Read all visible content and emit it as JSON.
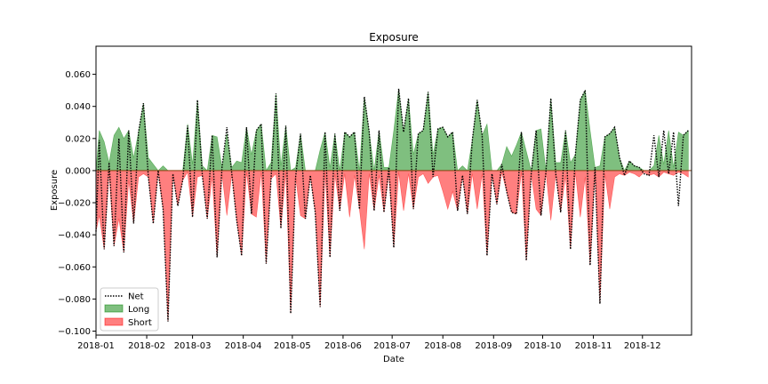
{
  "chart_data": {
    "type": "area",
    "title": "Exposure",
    "xlabel": "Date",
    "ylabel": "Exposure",
    "xlim": [
      "2018-01-01",
      "2018-12-31"
    ],
    "ylim": [
      -0.1025,
      0.0775
    ],
    "yticks": [
      -0.1,
      -0.08,
      -0.06,
      -0.04,
      -0.02,
      0.0,
      0.02,
      0.04,
      0.06
    ],
    "ytick_labels": [
      "−0.100",
      "−0.080",
      "−0.060",
      "−0.040",
      "−0.020",
      "0.000",
      "0.020",
      "0.040",
      "0.060"
    ],
    "xticks": [
      "2018-01-01",
      "2018-02-01",
      "2018-03-01",
      "2018-04-01",
      "2018-05-01",
      "2018-06-01",
      "2018-07-01",
      "2018-08-01",
      "2018-09-01",
      "2018-10-01",
      "2018-11-01",
      "2018-12-01"
    ],
    "xtick_labels": [
      "2018-01",
      "2018-02",
      "2018-03",
      "2018-04",
      "2018-05",
      "2018-06",
      "2018-07",
      "2018-08",
      "2018-09",
      "2018-10",
      "2018-11",
      "2018-12"
    ],
    "grid": false,
    "legend": "lower-left",
    "colors": {
      "long": "#008000",
      "short": "#ff0000",
      "net": "#000000",
      "zero_line": "#8b4513"
    },
    "series": [
      {
        "name": "Long",
        "x": [
          "2018-01-01",
          "2018-01-03",
          "2018-01-06",
          "2018-01-09",
          "2018-01-12",
          "2018-01-15",
          "2018-01-18",
          "2018-01-21",
          "2018-01-24",
          "2018-01-27",
          "2018-01-30",
          "2018-02-02",
          "2018-02-05",
          "2018-02-08",
          "2018-02-11",
          "2018-02-14",
          "2018-02-17",
          "2018-02-20",
          "2018-02-23",
          "2018-02-26",
          "2018-03-01",
          "2018-03-04",
          "2018-03-07",
          "2018-03-10",
          "2018-03-13",
          "2018-03-16",
          "2018-03-19",
          "2018-03-22",
          "2018-03-25",
          "2018-03-28",
          "2018-03-31",
          "2018-04-03",
          "2018-04-06",
          "2018-04-09",
          "2018-04-12",
          "2018-04-15",
          "2018-04-18",
          "2018-04-21",
          "2018-04-24",
          "2018-04-27",
          "2018-04-30",
          "2018-05-03",
          "2018-05-06",
          "2018-05-09",
          "2018-05-12",
          "2018-05-15",
          "2018-05-18",
          "2018-05-21",
          "2018-05-24",
          "2018-05-27",
          "2018-05-30",
          "2018-06-02",
          "2018-06-05",
          "2018-06-08",
          "2018-06-11",
          "2018-06-14",
          "2018-06-17",
          "2018-06-20",
          "2018-06-23",
          "2018-06-26",
          "2018-06-29",
          "2018-07-02",
          "2018-07-05",
          "2018-07-08",
          "2018-07-11",
          "2018-07-14",
          "2018-07-17",
          "2018-07-20",
          "2018-07-23",
          "2018-07-26",
          "2018-07-29",
          "2018-08-01",
          "2018-08-04",
          "2018-08-07",
          "2018-08-10",
          "2018-08-13",
          "2018-08-16",
          "2018-08-19",
          "2018-08-22",
          "2018-08-25",
          "2018-08-28",
          "2018-08-31",
          "2018-09-03",
          "2018-09-06",
          "2018-09-09",
          "2018-09-12",
          "2018-09-15",
          "2018-09-18",
          "2018-09-21",
          "2018-09-24",
          "2018-09-27",
          "2018-09-30",
          "2018-10-03",
          "2018-10-06",
          "2018-10-09",
          "2018-10-12",
          "2018-10-15",
          "2018-10-18",
          "2018-10-21",
          "2018-10-24",
          "2018-10-27",
          "2018-10-30",
          "2018-11-02",
          "2018-11-05",
          "2018-11-08",
          "2018-11-11",
          "2018-11-14",
          "2018-11-17",
          "2018-11-20",
          "2018-11-23",
          "2018-11-26",
          "2018-11-29",
          "2018-12-02",
          "2018-12-05",
          "2018-12-08",
          "2018-12-11",
          "2018-12-14",
          "2018-12-17",
          "2018-12-20",
          "2018-12-23",
          "2018-12-26",
          "2018-12-29"
        ],
        "values": [
          0,
          0.025,
          0.018,
          0.005,
          0.022,
          0.027,
          0.02,
          0.025,
          0.008,
          0.024,
          0.042,
          0.008,
          0.004,
          0,
          0.003,
          0,
          0,
          0,
          0,
          0.029,
          0.004,
          0.044,
          0.003,
          0,
          0.022,
          0.021,
          0.002,
          0.023,
          0.002,
          0.006,
          0.005,
          0.027,
          0.01,
          0.025,
          0.029,
          0,
          0.005,
          0.048,
          0.003,
          0.028,
          0,
          0.002,
          0.023,
          0,
          0,
          0,
          0.013,
          0.024,
          0.002,
          0.023,
          0,
          0.024,
          0.021,
          0.024,
          0,
          0.046,
          0.024,
          0,
          0.025,
          0.002,
          0.002,
          0.025,
          0.051,
          0.024,
          0.045,
          0.01,
          0.023,
          0.025,
          0.049,
          0.01,
          0.026,
          0.027,
          0.021,
          0.024,
          0,
          0.003,
          0,
          0.019,
          0.044,
          0.022,
          0.029,
          0,
          0,
          0.004,
          0.015,
          0.009,
          0.016,
          0.024,
          0.012,
          0,
          0.025,
          0.026,
          0,
          0.045,
          0.005,
          0.005,
          0.025,
          0.005,
          0.01,
          0.044,
          0.05,
          0.025,
          0.002,
          0.003,
          0.021,
          0.023,
          0.027,
          0.008,
          0,
          0.006,
          0.003,
          0.002,
          0,
          0,
          0.003,
          0.022,
          0.004,
          0.025,
          0.002,
          0.024,
          0.022,
          0.025
        ]
      },
      {
        "name": "Short",
        "x": [
          "2018-01-01",
          "2018-01-03",
          "2018-01-06",
          "2018-01-09",
          "2018-01-12",
          "2018-01-15",
          "2018-01-18",
          "2018-01-21",
          "2018-01-24",
          "2018-01-27",
          "2018-01-30",
          "2018-02-02",
          "2018-02-05",
          "2018-02-08",
          "2018-02-11",
          "2018-02-14",
          "2018-02-17",
          "2018-02-20",
          "2018-02-23",
          "2018-02-26",
          "2018-03-01",
          "2018-03-04",
          "2018-03-07",
          "2018-03-10",
          "2018-03-13",
          "2018-03-16",
          "2018-03-19",
          "2018-03-22",
          "2018-03-25",
          "2018-03-28",
          "2018-03-31",
          "2018-04-03",
          "2018-04-06",
          "2018-04-09",
          "2018-04-12",
          "2018-04-15",
          "2018-04-18",
          "2018-04-21",
          "2018-04-24",
          "2018-04-27",
          "2018-04-30",
          "2018-05-03",
          "2018-05-06",
          "2018-05-09",
          "2018-05-12",
          "2018-05-15",
          "2018-05-18",
          "2018-05-21",
          "2018-05-24",
          "2018-05-27",
          "2018-05-30",
          "2018-06-02",
          "2018-06-05",
          "2018-06-08",
          "2018-06-11",
          "2018-06-14",
          "2018-06-17",
          "2018-06-20",
          "2018-06-23",
          "2018-06-26",
          "2018-06-29",
          "2018-07-02",
          "2018-07-05",
          "2018-07-08",
          "2018-07-11",
          "2018-07-14",
          "2018-07-17",
          "2018-07-20",
          "2018-07-23",
          "2018-07-26",
          "2018-07-29",
          "2018-08-01",
          "2018-08-04",
          "2018-08-07",
          "2018-08-10",
          "2018-08-13",
          "2018-08-16",
          "2018-08-19",
          "2018-08-22",
          "2018-08-25",
          "2018-08-28",
          "2018-08-31",
          "2018-09-03",
          "2018-09-06",
          "2018-09-09",
          "2018-09-12",
          "2018-09-15",
          "2018-09-18",
          "2018-09-21",
          "2018-09-24",
          "2018-09-27",
          "2018-09-30",
          "2018-10-03",
          "2018-10-06",
          "2018-10-09",
          "2018-10-12",
          "2018-10-15",
          "2018-10-18",
          "2018-10-21",
          "2018-10-24",
          "2018-10-27",
          "2018-10-30",
          "2018-11-02",
          "2018-11-05",
          "2018-11-08",
          "2018-11-11",
          "2018-11-14",
          "2018-11-17",
          "2018-11-20",
          "2018-11-23",
          "2018-11-26",
          "2018-11-29",
          "2018-12-02",
          "2018-12-05",
          "2018-12-08",
          "2018-12-11",
          "2018-12-14",
          "2018-12-17",
          "2018-12-20",
          "2018-12-23",
          "2018-12-26",
          "2018-12-29"
        ],
        "values": [
          -0.038,
          -0.028,
          -0.049,
          -0.001,
          -0.047,
          -0.03,
          -0.051,
          -0.006,
          -0.033,
          -0.004,
          -0.002,
          -0.004,
          -0.033,
          -0.001,
          -0.024,
          -0.094,
          -0.002,
          -0.022,
          -0.006,
          -0.001,
          -0.029,
          -0.004,
          -0.003,
          -0.03,
          -0.004,
          -0.054,
          -0.002,
          -0.028,
          -0.002,
          -0.031,
          -0.053,
          -0.001,
          -0.027,
          -0.029,
          -0.001,
          -0.058,
          -0.005,
          -0.002,
          -0.036,
          -0.001,
          -0.089,
          -0.004,
          -0.028,
          -0.03,
          -0.003,
          -0.026,
          -0.085,
          -0.001,
          -0.054,
          -0.002,
          -0.025,
          -0.002,
          -0.029,
          -0.003,
          -0.024,
          -0.049,
          -0.002,
          -0.025,
          -0.003,
          -0.026,
          -0.002,
          -0.048,
          -0.001,
          -0.025,
          -0.002,
          -0.024,
          -0.004,
          -0.002,
          -0.008,
          -0.004,
          -0.003,
          -0.013,
          -0.024,
          -0.013,
          -0.025,
          -0.003,
          -0.027,
          -0.002,
          -0.024,
          -0.002,
          -0.053,
          -0.002,
          -0.021,
          -0.001,
          -0.013,
          -0.026,
          -0.027,
          -0.001,
          -0.056,
          -0.002,
          -0.024,
          -0.028,
          -0.001,
          -0.031,
          -0.002,
          -0.026,
          -0.003,
          -0.049,
          -0.001,
          -0.029,
          -0.004,
          -0.059,
          -0.001,
          -0.083,
          -0.002,
          -0.024,
          -0.004,
          -0.002,
          -0.003,
          -0.001,
          -0.002,
          -0.004,
          -0.001,
          -0.003,
          -0.002,
          -0.004,
          -0.001,
          -0.002,
          -0.003,
          -0.001,
          -0.002,
          -0.004
        ]
      },
      {
        "name": "Net",
        "x": [
          "2018-01-01",
          "2018-01-03",
          "2018-01-06",
          "2018-01-09",
          "2018-01-12",
          "2018-01-15",
          "2018-01-18",
          "2018-01-21",
          "2018-01-24",
          "2018-01-27",
          "2018-01-30",
          "2018-02-02",
          "2018-02-05",
          "2018-02-08",
          "2018-02-11",
          "2018-02-14",
          "2018-02-17",
          "2018-02-20",
          "2018-02-23",
          "2018-02-26",
          "2018-03-01",
          "2018-03-04",
          "2018-03-07",
          "2018-03-10",
          "2018-03-13",
          "2018-03-16",
          "2018-03-19",
          "2018-03-22",
          "2018-03-25",
          "2018-03-28",
          "2018-03-31",
          "2018-04-03",
          "2018-04-06",
          "2018-04-09",
          "2018-04-12",
          "2018-04-15",
          "2018-04-18",
          "2018-04-21",
          "2018-04-24",
          "2018-04-27",
          "2018-04-30",
          "2018-05-03",
          "2018-05-06",
          "2018-05-09",
          "2018-05-12",
          "2018-05-15",
          "2018-05-18",
          "2018-05-21",
          "2018-05-24",
          "2018-05-27",
          "2018-05-30",
          "2018-06-02",
          "2018-06-05",
          "2018-06-08",
          "2018-06-11",
          "2018-06-14",
          "2018-06-17",
          "2018-06-20",
          "2018-06-23",
          "2018-06-26",
          "2018-06-29",
          "2018-07-02",
          "2018-07-05",
          "2018-07-08",
          "2018-07-11",
          "2018-07-14",
          "2018-07-17",
          "2018-07-20",
          "2018-07-23",
          "2018-07-26",
          "2018-07-29",
          "2018-08-01",
          "2018-08-04",
          "2018-08-07",
          "2018-08-10",
          "2018-08-13",
          "2018-08-16",
          "2018-08-19",
          "2018-08-22",
          "2018-08-25",
          "2018-08-28",
          "2018-08-31",
          "2018-09-03",
          "2018-09-06",
          "2018-09-09",
          "2018-09-12",
          "2018-09-15",
          "2018-09-18",
          "2018-09-21",
          "2018-09-24",
          "2018-09-27",
          "2018-09-30",
          "2018-10-03",
          "2018-10-06",
          "2018-10-09",
          "2018-10-12",
          "2018-10-15",
          "2018-10-18",
          "2018-10-21",
          "2018-10-24",
          "2018-10-27",
          "2018-10-30",
          "2018-11-02",
          "2018-11-05",
          "2018-11-08",
          "2018-11-11",
          "2018-11-14",
          "2018-11-17",
          "2018-11-20",
          "2018-11-23",
          "2018-11-26",
          "2018-11-29",
          "2018-12-02",
          "2018-12-05",
          "2018-12-08",
          "2018-12-11",
          "2018-12-14",
          "2018-12-17",
          "2018-12-20",
          "2018-12-23",
          "2018-12-26",
          "2018-12-29"
        ],
        "values": [
          -0.038,
          0.019,
          -0.049,
          0.005,
          -0.047,
          0.02,
          -0.051,
          0.025,
          -0.033,
          0.024,
          0.042,
          -0.004,
          -0.033,
          0,
          -0.024,
          -0.094,
          -0.002,
          -0.022,
          -0.006,
          0.028,
          -0.029,
          0.044,
          -0.003,
          -0.03,
          0.022,
          -0.054,
          0.002,
          0.027,
          -0.002,
          -0.031,
          -0.053,
          0.027,
          -0.027,
          0.025,
          0.029,
          -0.058,
          -0.005,
          0.048,
          -0.036,
          0.028,
          -0.089,
          -0.004,
          0.023,
          -0.03,
          -0.003,
          -0.026,
          -0.085,
          0.024,
          -0.054,
          0.023,
          -0.025,
          0.024,
          0.021,
          0.024,
          -0.024,
          0.046,
          0.024,
          -0.025,
          0.025,
          -0.026,
          0.002,
          -0.048,
          0.051,
          0.024,
          0.045,
          -0.024,
          0.023,
          0.025,
          0.049,
          -0.004,
          0.026,
          0.027,
          0.021,
          0.024,
          -0.025,
          -0.003,
          -0.027,
          0.019,
          0.044,
          0.022,
          -0.053,
          -0.002,
          -0.021,
          0.004,
          -0.013,
          -0.026,
          -0.027,
          0.024,
          -0.056,
          -0.002,
          0.025,
          -0.028,
          -0.001,
          0.045,
          -0.002,
          -0.026,
          0.025,
          -0.049,
          0.01,
          0.044,
          0.05,
          -0.059,
          0.002,
          -0.083,
          0.021,
          0.023,
          0.027,
          0.008,
          -0.003,
          0.006,
          0.003,
          0.002,
          -0.002,
          -0.003,
          0.022,
          -0.004,
          0.025,
          -0.002,
          0.024,
          -0.022,
          0.022,
          0.025
        ]
      }
    ]
  }
}
